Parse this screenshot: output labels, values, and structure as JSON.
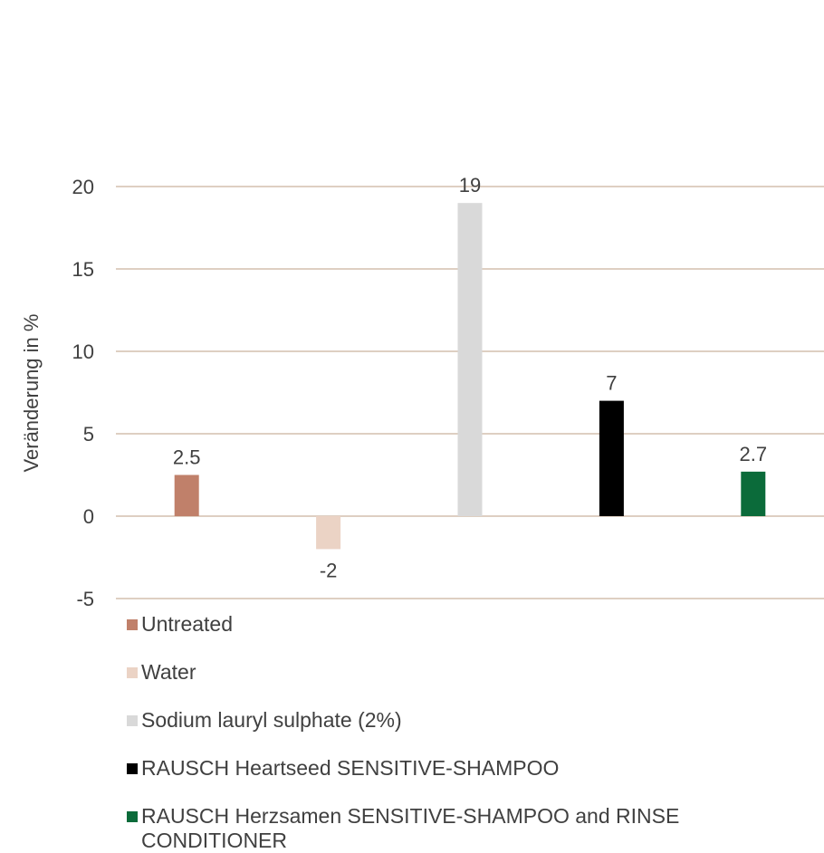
{
  "chart_data": {
    "type": "bar",
    "ylabel": "Veränderung in %",
    "ylim": [
      -5,
      20
    ],
    "yticks": [
      -5,
      0,
      5,
      10,
      15,
      20
    ],
    "grid": true,
    "legend_position": "bottom",
    "series": [
      {
        "name": "Untreated",
        "values": [
          2.5
        ],
        "color": "#c0806a"
      },
      {
        "name": "Water",
        "values": [
          -2
        ],
        "color": "#ebd3c5"
      },
      {
        "name": "Sodium lauryl sulphate (2%)",
        "values": [
          19
        ],
        "color": "#d9d9d9"
      },
      {
        "name": "RAUSCH Heartseed SENSITIVE-SHAMPOO",
        "values": [
          7
        ],
        "color": "#000000"
      },
      {
        "name": "RAUSCH Herzsamen SENSITIVE-SHAMPOO and RINSE CONDITIONER",
        "values": [
          2.7
        ],
        "color": "#0b6b3a"
      }
    ],
    "data_labels": [
      "2.5",
      "-2",
      "19",
      "7",
      "2.7"
    ],
    "gridline_color": "#c9b29e"
  }
}
